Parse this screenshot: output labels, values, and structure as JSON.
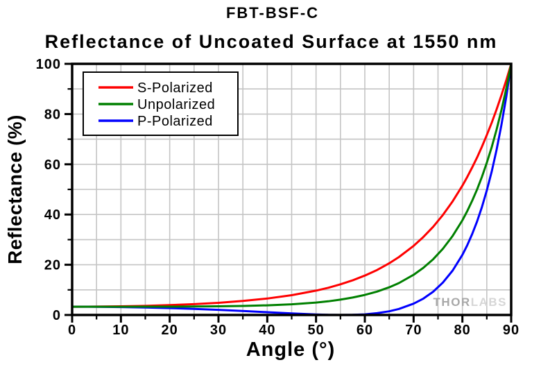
{
  "chart_data": {
    "type": "line",
    "title": "FBT-BSF-C",
    "subtitle": "Reflectance of Uncoated Surface at 1550 nm",
    "xlabel": "Angle (°)",
    "ylabel": "Reflectance (%)",
    "xlim": [
      0,
      90
    ],
    "ylim": [
      0,
      100
    ],
    "x_ticks": [
      0,
      10,
      20,
      30,
      40,
      50,
      60,
      70,
      80,
      90
    ],
    "y_ticks": [
      0,
      20,
      40,
      60,
      80,
      100
    ],
    "x_minor_step": 5,
    "y_minor_step": 10,
    "grid": true,
    "grid_color": "#c4c4c4",
    "frame_color": "#000000",
    "legend_position": "top-left",
    "x": [
      0,
      5,
      10,
      15,
      20,
      25,
      30,
      35,
      40,
      45,
      50,
      52.5,
      55,
      57.5,
      60,
      62.5,
      65,
      67,
      70,
      72,
      74,
      76,
      78,
      80,
      81,
      82,
      83,
      84,
      85,
      86,
      87,
      88,
      89,
      90
    ],
    "series": [
      {
        "name": "S-Polarized",
        "color": "#fe0000",
        "values": [
          3.3,
          3.34,
          3.44,
          3.63,
          3.91,
          4.3,
          4.84,
          5.57,
          6.55,
          7.88,
          9.69,
          10.84,
          12.2,
          13.79,
          15.68,
          17.91,
          20.57,
          23.06,
          27.51,
          31.04,
          35.12,
          39.82,
          45.24,
          51.49,
          54.97,
          58.7,
          62.69,
          66.98,
          71.59,
          76.52,
          81.8,
          87.46,
          93.52,
          100
        ]
      },
      {
        "name": "Unpolarized",
        "color": "#008000",
        "values": [
          3.3,
          3.3,
          3.3,
          3.31,
          3.32,
          3.36,
          3.44,
          3.58,
          3.83,
          4.25,
          4.95,
          5.45,
          6.1,
          6.92,
          7.97,
          9.31,
          11.02,
          12.72,
          16.0,
          18.78,
          22.19,
          26.35,
          31.46,
          37.72,
          41.38,
          45.44,
          49.95,
          54.97,
          60.56,
          66.79,
          73.75,
          81.53,
          90.24,
          100
        ]
      },
      {
        "name": "P-Polarized",
        "color": "#0000fe",
        "values": [
          3.3,
          3.27,
          3.16,
          2.99,
          2.74,
          2.42,
          2.04,
          1.59,
          1.11,
          0.62,
          0.21,
          0.06,
          0.0,
          0.05,
          0.26,
          0.71,
          1.47,
          2.39,
          4.49,
          6.53,
          9.26,
          12.89,
          17.67,
          23.95,
          27.79,
          32.18,
          37.2,
          42.95,
          49.53,
          57.07,
          65.7,
          75.6,
          86.96,
          100
        ]
      }
    ],
    "draw_order": [
      0,
      2,
      1
    ]
  },
  "watermark": {
    "part1": "THOR",
    "part2": "LABS"
  }
}
